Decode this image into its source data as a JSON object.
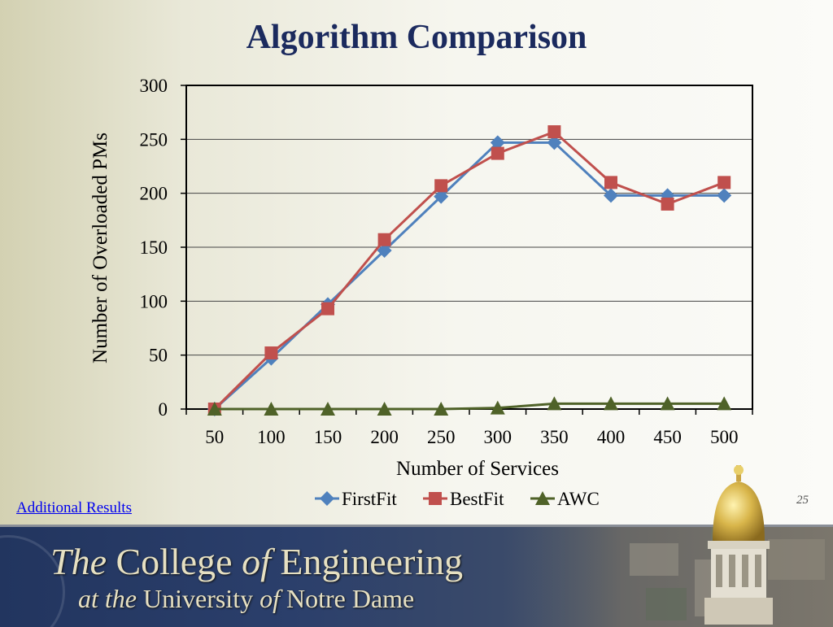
{
  "slide": {
    "title": "Algorithm Comparison",
    "link_text": "Additional Results",
    "page_number": "25"
  },
  "banner": {
    "the": "The",
    "college": " College ",
    "of1": "of",
    "engineering": " Engineering",
    "at_the": "at the",
    "university": " University ",
    "of2": "of",
    "notre_dame": " Notre Dame"
  },
  "colors": {
    "firstfit": "#4f81bd",
    "bestfit": "#c0504d",
    "awc": "#4f6228",
    "title": "#1b2a5e"
  },
  "chart_data": {
    "type": "line",
    "title": "",
    "xlabel": "Number of Services",
    "ylabel": "Number of Overloaded PMs",
    "categories": [
      "50",
      "100",
      "150",
      "200",
      "250",
      "300",
      "350",
      "400",
      "450",
      "500"
    ],
    "ylim": [
      0,
      300
    ],
    "yticks": [
      0,
      50,
      100,
      150,
      200,
      250,
      300
    ],
    "grid": true,
    "legend_position": "bottom",
    "series": [
      {
        "name": "FirstFit",
        "marker": "diamond",
        "values": [
          0,
          47,
          97,
          147,
          197,
          247,
          247,
          198,
          198,
          198
        ]
      },
      {
        "name": "BestFit",
        "marker": "square",
        "values": [
          0,
          52,
          93,
          157,
          207,
          237,
          257,
          210,
          190,
          210
        ]
      },
      {
        "name": "AWC",
        "marker": "triangle",
        "values": [
          0,
          0,
          0,
          0,
          0,
          1,
          5,
          5,
          5,
          5
        ]
      }
    ]
  }
}
